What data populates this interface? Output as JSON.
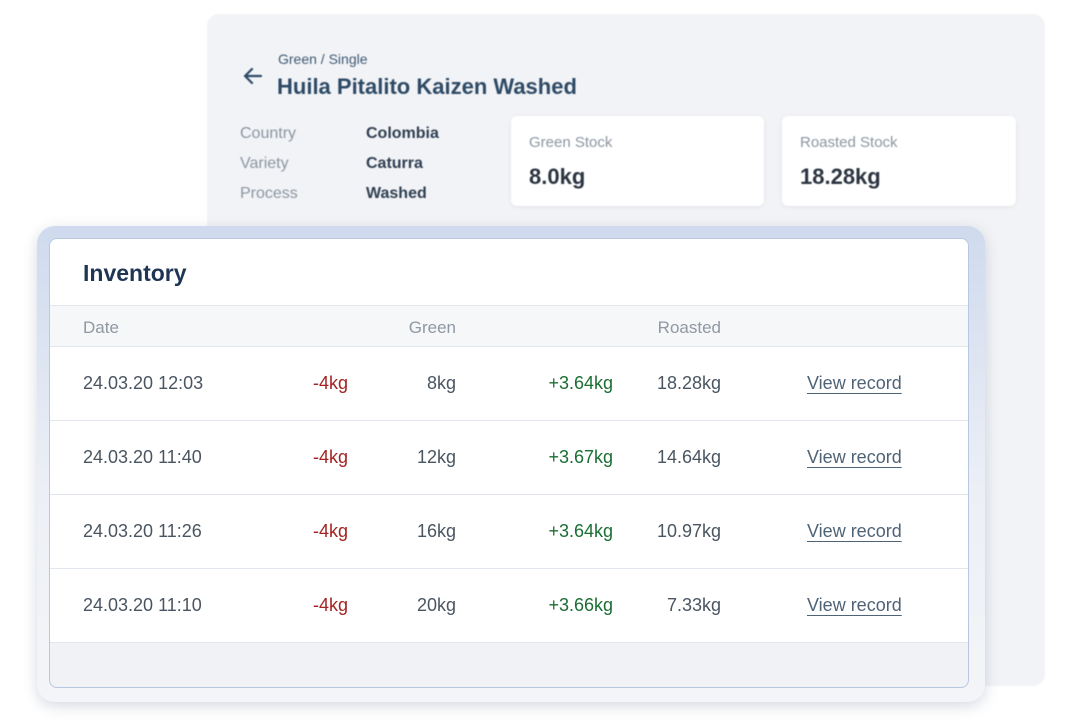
{
  "detail": {
    "breadcrumb": "Green / Single",
    "title": "Huila Pitalito Kaizen Washed",
    "attributes": [
      {
        "label": "Country",
        "value": "Colombia"
      },
      {
        "label": "Variety",
        "value": "Caturra"
      },
      {
        "label": "Process",
        "value": "Washed"
      }
    ],
    "green_stock": {
      "label": "Green Stock",
      "value": "8.0kg"
    },
    "roasted_stock": {
      "label": "Roasted Stock",
      "value": "18.28kg"
    }
  },
  "inventory": {
    "title": "Inventory",
    "columns": {
      "date": "Date",
      "green": "Green",
      "roasted": "Roasted"
    },
    "rows": [
      {
        "date": "24.03.20 12:03",
        "green_delta": "-4kg",
        "green_total": "8kg",
        "roasted_delta": "+3.64kg",
        "roasted_total": "18.28kg",
        "link": "View record"
      },
      {
        "date": "24.03.20 11:40",
        "green_delta": "-4kg",
        "green_total": "12kg",
        "roasted_delta": "+3.67kg",
        "roasted_total": "14.64kg",
        "link": "View record"
      },
      {
        "date": "24.03.20 11:26",
        "green_delta": "-4kg",
        "green_total": "16kg",
        "roasted_delta": "+3.64kg",
        "roasted_total": "10.97kg",
        "link": "View record"
      },
      {
        "date": "24.03.20 11:10",
        "green_delta": "-4kg",
        "green_total": "20kg",
        "roasted_delta": "+3.66kg",
        "roasted_total": "7.33kg",
        "link": "View record"
      }
    ]
  },
  "icons": {
    "back": "arrow-left-icon"
  },
  "colors": {
    "negative": "#a32222",
    "positive": "#1b6e33",
    "title": "#1f3554"
  }
}
